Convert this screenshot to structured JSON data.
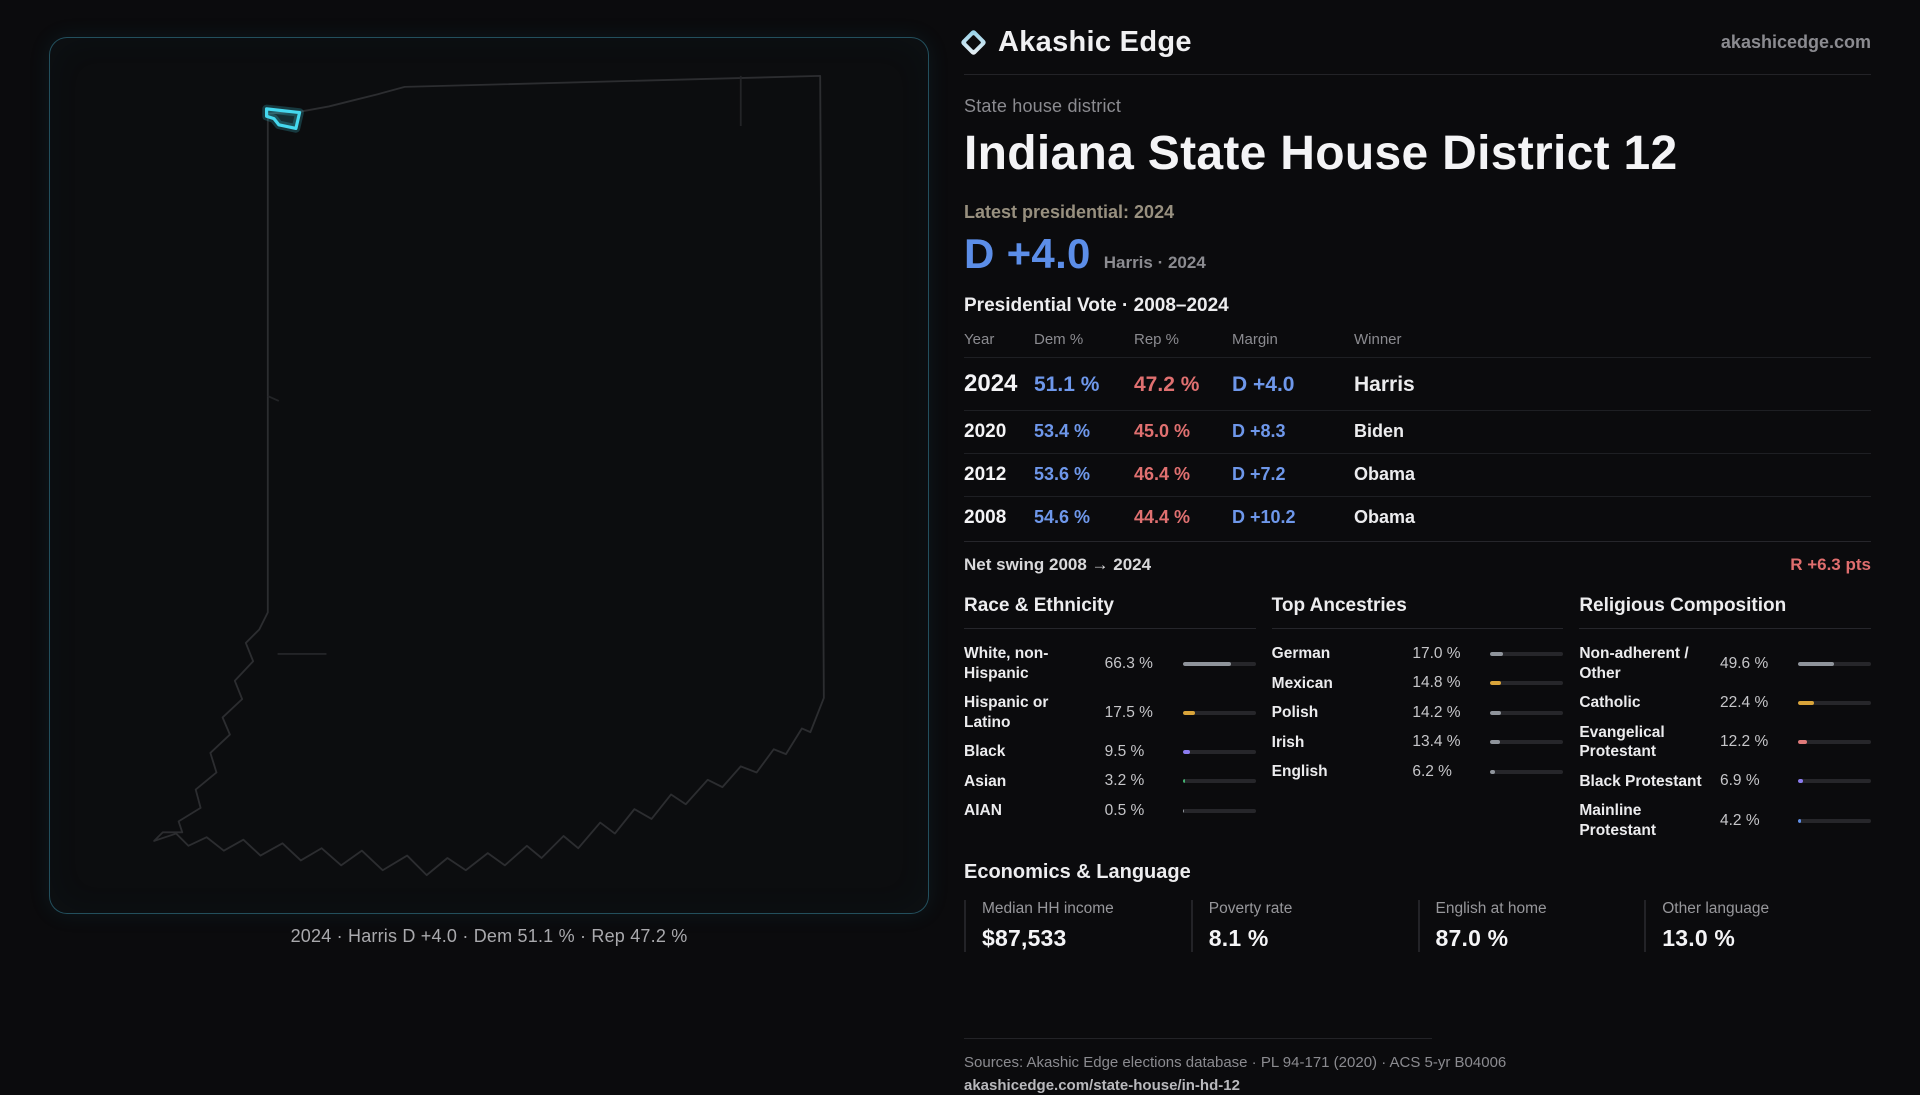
{
  "brand": {
    "name": "Akashic Edge",
    "domain": "akashicedge.com"
  },
  "page": {
    "kicker": "State house district",
    "title": "Indiana State House District 12"
  },
  "latest": {
    "label": "Latest presidential: 2024",
    "value": "D +4.0",
    "note": "Harris · 2024"
  },
  "map": {
    "caption": "2024 · Harris D +4.0 · Dem 51.1 % · Rep 47.2 %"
  },
  "vote_table": {
    "title": "Presidential Vote · 2008–2024",
    "headers": [
      "Year",
      "Dem %",
      "Rep %",
      "Margin",
      "Winner"
    ],
    "rows": [
      {
        "year": "2024",
        "dem": "51.1 %",
        "rep": "47.2 %",
        "margin": "D +4.0",
        "winner": "Harris",
        "row_class": "emph"
      },
      {
        "year": "2020",
        "dem": "53.4 %",
        "rep": "45.0 %",
        "margin": "D +8.3",
        "winner": "Biden",
        "row_class": "std"
      },
      {
        "year": "2012",
        "dem": "53.6 %",
        "rep": "46.4 %",
        "margin": "D +7.2",
        "winner": "Obama",
        "row_class": "std"
      },
      {
        "year": "2008",
        "dem": "54.6 %",
        "rep": "44.4 %",
        "margin": "D +10.2",
        "winner": "Obama",
        "row_class": "std"
      }
    ],
    "net_swing_label": "Net swing 2008 → 2024",
    "net_swing_value": "R +6.3 pts"
  },
  "demographics": {
    "race": {
      "title": "Race & Ethnicity",
      "rows": [
        {
          "label": "White, non-Hispanic",
          "value": "66.3 %",
          "pct": 66.3,
          "color": "#8f949b"
        },
        {
          "label": "Hispanic or Latino",
          "value": "17.5 %",
          "pct": 17.5,
          "color": "#d9a43a"
        },
        {
          "label": "Black",
          "value": "9.5 %",
          "pct": 9.5,
          "color": "#8b7bf0"
        },
        {
          "label": "Asian",
          "value": "3.2 %",
          "pct": 3.2,
          "color": "#43b271"
        },
        {
          "label": "AIAN",
          "value": "0.5 %",
          "pct": 0.5,
          "color": "#8f949b"
        }
      ]
    },
    "ancestries": {
      "title": "Top Ancestries",
      "rows": [
        {
          "label": "German",
          "value": "17.0 %",
          "pct": 17.0,
          "color": "#8f949b"
        },
        {
          "label": "Mexican",
          "value": "14.8 %",
          "pct": 14.8,
          "color": "#d9a43a"
        },
        {
          "label": "Polish",
          "value": "14.2 %",
          "pct": 14.2,
          "color": "#8f949b"
        },
        {
          "label": "Irish",
          "value": "13.4 %",
          "pct": 13.4,
          "color": "#8f949b"
        },
        {
          "label": "English",
          "value": "6.2 %",
          "pct": 6.2,
          "color": "#8f949b"
        }
      ]
    },
    "religion": {
      "title": "Religious Composition",
      "rows": [
        {
          "label": "Non-adherent / Other",
          "value": "49.6 %",
          "pct": 49.6,
          "color": "#8f949b"
        },
        {
          "label": "Catholic",
          "value": "22.4 %",
          "pct": 22.4,
          "color": "#d9a43a"
        },
        {
          "label": "Evangelical Protestant",
          "value": "12.2 %",
          "pct": 12.2,
          "color": "#e07a7a"
        },
        {
          "label": "Black Protestant",
          "value": "6.9 %",
          "pct": 6.9,
          "color": "#8b7bf0"
        },
        {
          "label": "Mainline Protestant",
          "value": "4.2 %",
          "pct": 4.2,
          "color": "#5f8fe8"
        }
      ]
    }
  },
  "economics": {
    "title": "Economics & Language",
    "cards": [
      {
        "label": "Median HH income",
        "value": "$87,533"
      },
      {
        "label": "Poverty rate",
        "value": "8.1 %"
      },
      {
        "label": "English at home",
        "value": "87.0 %"
      },
      {
        "label": "Other language",
        "value": "13.0 %"
      }
    ]
  },
  "footer": {
    "sources": "Sources: Akashic Edge elections database · PL 94-171 (2020) · ACS 5-yr B04006",
    "permalink": "akashicedge.com/state-house/in-hd-12"
  },
  "colors": {
    "dem_blue": "#5c8ee8",
    "rep_red": "#e06e6e",
    "accent_cyan": "#3fd6ef"
  }
}
